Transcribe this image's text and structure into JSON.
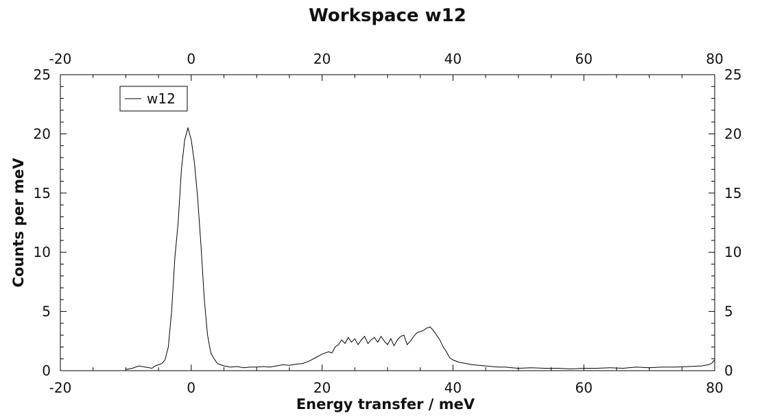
{
  "chart_data": {
    "type": "line",
    "title": "Workspace w12",
    "xlabel": "Energy transfer / meV",
    "ylabel": "Counts per meV",
    "xlim": [
      -20,
      80
    ],
    "ylim": [
      0,
      25
    ],
    "xticks": [
      "-20",
      "0",
      "20",
      "40",
      "60",
      "80"
    ],
    "yticks": [
      "0",
      "5",
      "10",
      "15",
      "20",
      "25"
    ],
    "grid": false,
    "legend_position": "top-left",
    "line_color": "#000000",
    "series": [
      {
        "name": "w12",
        "x": [
          -10,
          -9,
          -8,
          -7,
          -6,
          -5.5,
          -5,
          -4.5,
          -4,
          -3.5,
          -3,
          -2.5,
          -2,
          -1.5,
          -1,
          -0.5,
          0,
          0.5,
          1,
          1.5,
          2,
          2.5,
          3,
          3.5,
          4,
          4.5,
          5,
          6,
          7,
          8,
          9,
          10,
          11,
          12,
          13,
          14,
          15,
          16,
          17,
          18,
          19,
          20,
          21,
          21.5,
          22,
          22.5,
          23,
          23.5,
          24,
          24.5,
          25,
          25.5,
          26,
          26.5,
          27,
          27.5,
          28,
          28.5,
          29,
          29.5,
          30,
          30.5,
          31,
          31.5,
          32,
          32.5,
          33,
          33.5,
          34,
          34.5,
          35,
          35.5,
          36,
          36.5,
          37,
          37.5,
          38,
          38.5,
          39,
          39.5,
          40,
          41,
          42,
          43,
          44,
          45,
          46,
          47,
          48,
          49,
          50,
          52,
          54,
          56,
          58,
          60,
          62,
          64,
          66,
          68,
          70,
          72,
          74,
          76,
          78,
          79,
          79.5,
          80
        ],
        "values": [
          0.1,
          0.2,
          0.4,
          0.3,
          0.2,
          0.4,
          0.5,
          0.6,
          0.9,
          2.0,
          5.0,
          9.5,
          12.5,
          17.0,
          19.5,
          20.5,
          19.5,
          17.5,
          14.5,
          10.5,
          6.0,
          3.0,
          1.5,
          1.0,
          0.6,
          0.5,
          0.4,
          0.3,
          0.35,
          0.25,
          0.3,
          0.3,
          0.35,
          0.3,
          0.4,
          0.5,
          0.45,
          0.55,
          0.6,
          0.8,
          1.1,
          1.4,
          1.6,
          1.5,
          2.0,
          2.2,
          2.6,
          2.3,
          2.8,
          2.4,
          2.7,
          2.2,
          2.6,
          2.9,
          2.3,
          2.6,
          2.8,
          2.4,
          2.9,
          2.5,
          2.2,
          2.7,
          2.1,
          2.6,
          2.9,
          3.0,
          2.2,
          2.5,
          2.9,
          3.2,
          3.3,
          3.4,
          3.6,
          3.7,
          3.4,
          3.0,
          2.6,
          2.0,
          1.6,
          1.1,
          0.9,
          0.7,
          0.6,
          0.5,
          0.45,
          0.4,
          0.35,
          0.3,
          0.3,
          0.25,
          0.2,
          0.25,
          0.2,
          0.2,
          0.15,
          0.2,
          0.2,
          0.25,
          0.2,
          0.3,
          0.25,
          0.3,
          0.3,
          0.35,
          0.4,
          0.5,
          0.6,
          0.9
        ]
      }
    ]
  }
}
